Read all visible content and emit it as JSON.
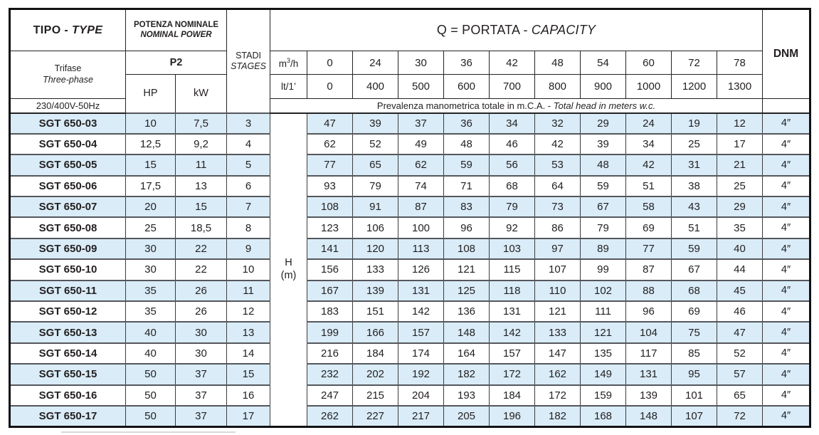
{
  "colors": {
    "row_alt": "#d9ecf8",
    "border_dark": "#232325",
    "border_gray": "#55575c",
    "text": "#231f20",
    "outer_border": "#121214"
  },
  "header": {
    "tipo": {
      "main": "TIPO -",
      "italic": "TYPE"
    },
    "power": {
      "line1": "POTENZA NOMINALE",
      "line2": "NOMINAL POWER"
    },
    "stages": {
      "line1": "STADI",
      "line2": "STAGES"
    },
    "phase": {
      "line1": "Trifase",
      "line2": "Three-phase"
    },
    "voltage": "230/400V-50Hz",
    "p2": "P2",
    "hp": "HP",
    "kw": "kW",
    "capacity": {
      "main": "Q = PORTATA -",
      "italic": "CAPACITY"
    },
    "dnm": "DNM",
    "flow_m3h": {
      "base": "m",
      "sup": "3",
      "rest": "/h",
      "values": [
        "0",
        "24",
        "30",
        "36",
        "42",
        "48",
        "54",
        "60",
        "72",
        "78"
      ]
    },
    "flow_lt": {
      "label": "lt/1’",
      "values": [
        "0",
        "400",
        "500",
        "600",
        "700",
        "800",
        "900",
        "1000",
        "1200",
        "1300"
      ]
    },
    "head_note": {
      "main": "Prevalenza manometrica totale in m.C.A. -",
      "italic": "Total head in meters w.c."
    },
    "h_label": {
      "line1": "H",
      "line2": "(m)"
    }
  },
  "rows": [
    {
      "type": "SGT 650-03",
      "hp": "10",
      "kw": "7,5",
      "stages": "3",
      "heads": [
        "47",
        "39",
        "37",
        "36",
        "34",
        "32",
        "29",
        "24",
        "19",
        "12"
      ],
      "dnm": "4″"
    },
    {
      "type": "SGT 650-04",
      "hp": "12,5",
      "kw": "9,2",
      "stages": "4",
      "heads": [
        "62",
        "52",
        "49",
        "48",
        "46",
        "42",
        "39",
        "34",
        "25",
        "17"
      ],
      "dnm": "4″"
    },
    {
      "type": "SGT 650-05",
      "hp": "15",
      "kw": "11",
      "stages": "5",
      "heads": [
        "77",
        "65",
        "62",
        "59",
        "56",
        "53",
        "48",
        "42",
        "31",
        "21"
      ],
      "dnm": "4″"
    },
    {
      "type": "SGT 650-06",
      "hp": "17,5",
      "kw": "13",
      "stages": "6",
      "heads": [
        "93",
        "79",
        "74",
        "71",
        "68",
        "64",
        "59",
        "51",
        "38",
        "25"
      ],
      "dnm": "4″"
    },
    {
      "type": "SGT 650-07",
      "hp": "20",
      "kw": "15",
      "stages": "7",
      "heads": [
        "108",
        "91",
        "87",
        "83",
        "79",
        "73",
        "67",
        "58",
        "43",
        "29"
      ],
      "dnm": "4″"
    },
    {
      "type": "SGT 650-08",
      "hp": "25",
      "kw": "18,5",
      "stages": "8",
      "heads": [
        "123",
        "106",
        "100",
        "96",
        "92",
        "86",
        "79",
        "69",
        "51",
        "35"
      ],
      "dnm": "4″"
    },
    {
      "type": "SGT 650-09",
      "hp": "30",
      "kw": "22",
      "stages": "9",
      "heads": [
        "141",
        "120",
        "113",
        "108",
        "103",
        "97",
        "89",
        "77",
        "59",
        "40"
      ],
      "dnm": "4″"
    },
    {
      "type": "SGT 650-10",
      "hp": "30",
      "kw": "22",
      "stages": "10",
      "heads": [
        "156",
        "133",
        "126",
        "121",
        "115",
        "107",
        "99",
        "87",
        "67",
        "44"
      ],
      "dnm": "4″"
    },
    {
      "type": "SGT 650-11",
      "hp": "35",
      "kw": "26",
      "stages": "11",
      "heads": [
        "167",
        "139",
        "131",
        "125",
        "118",
        "110",
        "102",
        "88",
        "68",
        "45"
      ],
      "dnm": "4″"
    },
    {
      "type": "SGT 650-12",
      "hp": "35",
      "kw": "26",
      "stages": "12",
      "heads": [
        "183",
        "151",
        "142",
        "136",
        "131",
        "121",
        "111",
        "96",
        "69",
        "46"
      ],
      "dnm": "4″"
    },
    {
      "type": "SGT 650-13",
      "hp": "40",
      "kw": "30",
      "stages": "13",
      "heads": [
        "199",
        "166",
        "157",
        "148",
        "142",
        "133",
        "121",
        "104",
        "75",
        "47"
      ],
      "dnm": "4″"
    },
    {
      "type": "SGT 650-14",
      "hp": "40",
      "kw": "30",
      "stages": "14",
      "heads": [
        "216",
        "184",
        "174",
        "164",
        "157",
        "147",
        "135",
        "117",
        "85",
        "52"
      ],
      "dnm": "4″"
    },
    {
      "type": "SGT 650-15",
      "hp": "50",
      "kw": "37",
      "stages": "15",
      "heads": [
        "232",
        "202",
        "192",
        "182",
        "172",
        "162",
        "149",
        "131",
        "95",
        "57"
      ],
      "dnm": "4″"
    },
    {
      "type": "SGT 650-16",
      "hp": "50",
      "kw": "37",
      "stages": "16",
      "heads": [
        "247",
        "215",
        "204",
        "193",
        "184",
        "172",
        "159",
        "139",
        "101",
        "65"
      ],
      "dnm": "4″"
    },
    {
      "type": "SGT 650-17",
      "hp": "50",
      "kw": "37",
      "stages": "17",
      "heads": [
        "262",
        "227",
        "217",
        "205",
        "196",
        "182",
        "168",
        "148",
        "107",
        "72"
      ],
      "dnm": "4″"
    }
  ]
}
